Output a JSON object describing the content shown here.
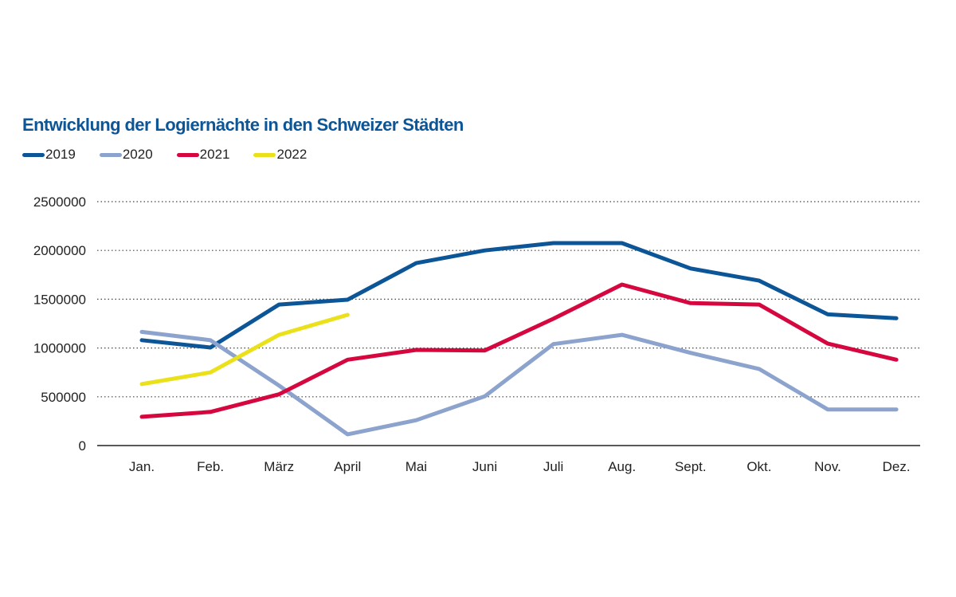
{
  "chart_data": {
    "type": "line",
    "title": "Entwicklung der Logiernächte in den Schweizer Städten",
    "xlabel": "",
    "ylabel": "",
    "categories": [
      "Jan.",
      "Feb.",
      "März",
      "April",
      "Mai",
      "Juni",
      "Juli",
      "Aug.",
      "Sept.",
      "Okt.",
      "Nov.",
      "Dez."
    ],
    "ylim": [
      0,
      2500000
    ],
    "yticks": [
      "0",
      "500000",
      "1000000",
      "1500000",
      "2000000",
      "2500000"
    ],
    "ytick_values": [
      0,
      500000,
      1000000,
      1500000,
      2000000,
      2500000
    ],
    "grid": "horizontal-dotted",
    "legend_position": "top-left",
    "series": [
      {
        "name": "2019",
        "color": "#0c5597",
        "values": [
          1080000,
          1005000,
          1445000,
          1495000,
          1870000,
          2000000,
          2075000,
          2075000,
          1815000,
          1690000,
          1345000,
          1305000
        ]
      },
      {
        "name": "2020",
        "color": "#8ca3cd",
        "values": [
          1165000,
          1080000,
          615000,
          115000,
          260000,
          505000,
          1040000,
          1135000,
          950000,
          785000,
          370000,
          370000
        ]
      },
      {
        "name": "2021",
        "color": "#d6073f",
        "values": [
          295000,
          345000,
          525000,
          880000,
          980000,
          975000,
          1300000,
          1650000,
          1460000,
          1445000,
          1045000,
          880000
        ]
      },
      {
        "name": "2022",
        "color": "#ebe11b",
        "values": [
          630000,
          750000,
          1135000,
          1340000
        ]
      }
    ]
  }
}
